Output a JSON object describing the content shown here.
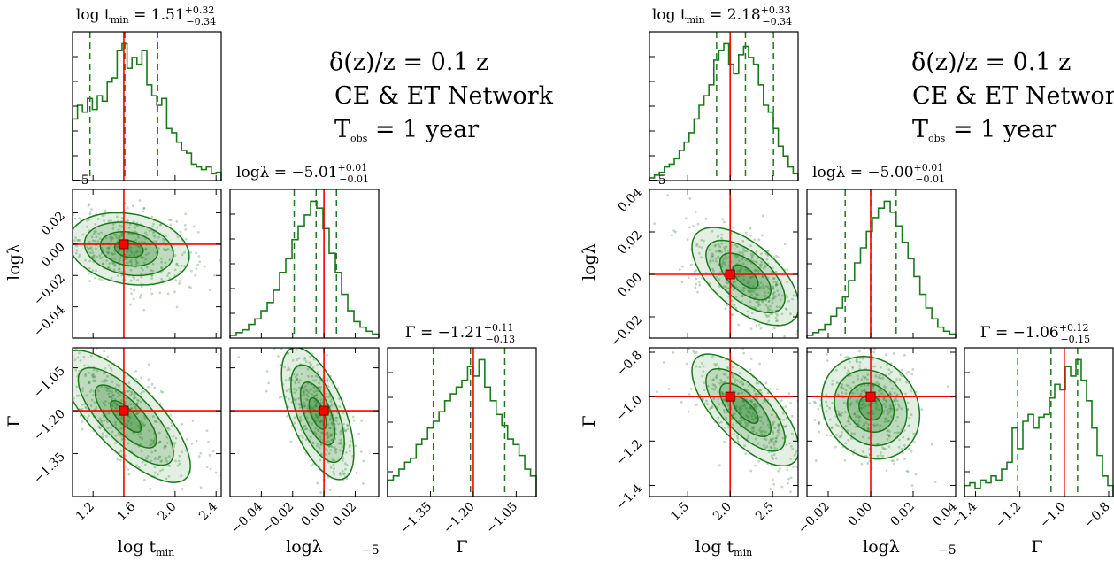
{
  "colors": {
    "posterior": "#1b7a1b",
    "truth": "#ff0000",
    "frame": "#000000"
  },
  "chart_data": [
    {
      "type": "corner",
      "annotation": [
        "δ(z)/z = 0.1 z",
        "CE & ET Network",
        "T_obs = 1 year"
      ],
      "annotation_text": {
        "line1": "δ(z)/z = 0.1 z",
        "line2": "CE & ET Network",
        "line3_main": "T",
        "line3_sub": "obs",
        "line3_rest": " = 1 year"
      },
      "parameters": [
        {
          "label": "log t_min",
          "label_main": "log t",
          "label_sub": "min",
          "title": "log t_min = 1.51 +0.32 −0.34",
          "title_main": "log t",
          "title_sub": "min",
          "title_value": " = 1.51",
          "title_plus": "+0.32",
          "title_minus": "−0.34",
          "range": [
            1.0,
            2.45
          ],
          "ticks": [
            1.2,
            1.6,
            2.0,
            2.4
          ],
          "tick_labels": [
            "1.2",
            "1.6",
            "2.0",
            "2.4"
          ],
          "truth": 1.5,
          "quantiles": [
            1.17,
            1.51,
            1.83
          ],
          "hist_y": [
            0.45,
            0.55,
            0.5,
            0.6,
            0.52,
            0.62,
            0.58,
            0.72,
            0.75,
            0.95,
            1.0,
            0.82,
            0.9,
            0.85,
            0.95,
            0.7,
            0.62,
            0.55,
            0.6,
            0.38,
            0.35,
            0.28,
            0.22,
            0.2,
            0.12,
            0.1,
            0.08,
            0.1,
            0.05,
            0.06
          ]
        },
        {
          "label": "logλ",
          "title": "logλ = −5.01 +0.01 −0.01",
          "title_main": "logλ = −5.01",
          "title_plus": "+0.01",
          "title_minus": "−0.01",
          "range": [
            -0.06,
            0.035
          ],
          "ticks": [
            -0.04,
            -0.02,
            0.0,
            0.02
          ],
          "tick_labels": [
            "−0.04",
            "−0.02",
            "0.00",
            "0.02"
          ],
          "offset_label": "−5",
          "truth": 0.0,
          "quantiles": [
            -0.019,
            -0.005,
            0.008
          ],
          "hist_y": [
            0.02,
            0.04,
            0.06,
            0.1,
            0.14,
            0.2,
            0.26,
            0.35,
            0.48,
            0.58,
            0.72,
            0.82,
            0.9,
            1.0,
            0.95,
            0.8,
            0.62,
            0.48,
            0.32,
            0.2,
            0.12,
            0.08,
            0.05,
            0.03
          ]
        },
        {
          "label": "Γ",
          "title": "Γ = −1.21 +0.11 −0.13",
          "title_main": "Γ = −1.21",
          "title_plus": "+0.11",
          "title_minus": "−0.13",
          "range": [
            -1.5,
            -0.98
          ],
          "ticks": [
            -1.35,
            -1.2,
            -1.05
          ],
          "tick_labels": [
            "−1.35",
            "−1.20",
            "−1.05"
          ],
          "truth": -1.2,
          "quantiles": [
            -1.34,
            -1.21,
            -1.09
          ],
          "hist_y": [
            0.12,
            0.15,
            0.2,
            0.25,
            0.28,
            0.38,
            0.42,
            0.5,
            0.55,
            0.62,
            0.7,
            0.75,
            0.8,
            0.85,
            0.95,
            0.88,
            1.0,
            0.8,
            0.7,
            0.6,
            0.52,
            0.42,
            0.38,
            0.3,
            0.2,
            0.15
          ]
        }
      ],
      "pairs": [
        {
          "x": 0,
          "y": 1,
          "mean": [
            1.55,
            -0.003
          ],
          "sd": [
            0.28,
            0.011
          ],
          "rho": -0.2
        },
        {
          "x": 0,
          "y": 2,
          "mean": [
            1.52,
            -1.22
          ],
          "sd": [
            0.3,
            0.11
          ],
          "rho": -0.75
        },
        {
          "x": 1,
          "y": 2,
          "mean": [
            -0.004,
            -1.21
          ],
          "sd": [
            0.011,
            0.11
          ],
          "rho": -0.6
        }
      ]
    },
    {
      "type": "corner",
      "annotation": [
        "δ(z)/z = 0.1 z",
        "CE & ET Network",
        "T_obs = 1 year"
      ],
      "annotation_text": {
        "line1": "δ(z)/z = 0.1 z",
        "line2": "CE & ET Network",
        "line3_main": "T",
        "line3_sub": "obs",
        "line3_rest": " = 1 year"
      },
      "parameters": [
        {
          "label": "log t_min",
          "label_main": "log t",
          "label_sub": "min",
          "title": "log t_min = 2.18 +0.33 −0.34",
          "title_main": "log t",
          "title_sub": "min",
          "title_value": " = 2.18",
          "title_plus": "+0.33",
          "title_minus": "−0.34",
          "range": [
            1.05,
            2.8
          ],
          "ticks": [
            1.5,
            2.0,
            2.5
          ],
          "tick_labels": [
            "1.5",
            "2.0",
            "2.5"
          ],
          "truth": 2.0,
          "quantiles": [
            1.84,
            2.18,
            2.51
          ],
          "hist_y": [
            0.02,
            0.04,
            0.06,
            0.1,
            0.12,
            0.16,
            0.22,
            0.28,
            0.35,
            0.45,
            0.55,
            0.62,
            0.7,
            0.88,
            0.95,
            1.0,
            0.85,
            0.78,
            0.92,
            0.98,
            0.9,
            0.85,
            0.7,
            0.55,
            0.5,
            0.38,
            0.25,
            0.18,
            0.1,
            0.05
          ]
        },
        {
          "label": "logλ",
          "title": "logλ = −5.00 +0.01 −0.01",
          "title_main": "logλ = −5.00",
          "title_plus": "+0.01",
          "title_minus": "−0.01",
          "range": [
            -0.03,
            0.04
          ],
          "ticks": [
            -0.02,
            0.0,
            0.02,
            0.04
          ],
          "tick_labels": [
            "−0.02",
            "0.00",
            "0.02",
            "0.04"
          ],
          "offset_label": "−5",
          "truth": 0.0,
          "quantiles": [
            -0.012,
            0.0,
            0.012
          ],
          "hist_y": [
            0.02,
            0.04,
            0.06,
            0.1,
            0.16,
            0.22,
            0.3,
            0.42,
            0.55,
            0.66,
            0.78,
            0.88,
            0.95,
            1.0,
            0.92,
            0.82,
            0.7,
            0.58,
            0.45,
            0.32,
            0.22,
            0.14,
            0.08,
            0.05,
            0.03
          ]
        },
        {
          "label": "Γ",
          "title": "Γ = −1.06 +0.12 −0.15",
          "title_main": "Γ = −1.06",
          "title_plus": "+0.12",
          "title_minus": "−0.15",
          "range": [
            -1.45,
            -0.78
          ],
          "ticks": [
            -1.4,
            -1.2,
            -1.0,
            -0.8
          ],
          "tick_labels": [
            "−1.4",
            "−1.2",
            "−1.0",
            "−0.8"
          ],
          "truth": -1.0,
          "quantiles": [
            -1.21,
            -1.06,
            -0.94
          ],
          "hist_y": [
            0.08,
            0.1,
            0.06,
            0.12,
            0.1,
            0.15,
            0.12,
            0.2,
            0.25,
            0.5,
            0.35,
            0.55,
            0.6,
            0.5,
            0.58,
            0.6,
            0.72,
            0.82,
            0.78,
            0.95,
            0.88,
            1.0,
            0.85,
            0.7,
            0.5,
            0.3,
            0.15,
            0.08
          ]
        }
      ],
      "pairs": [
        {
          "x": 0,
          "y": 1,
          "mean": [
            2.18,
            -0.001
          ],
          "sd": [
            0.3,
            0.011
          ],
          "rho": -0.6
        },
        {
          "x": 0,
          "y": 2,
          "mean": [
            2.18,
            -1.06
          ],
          "sd": [
            0.3,
            0.12
          ],
          "rho": -0.7
        },
        {
          "x": 1,
          "y": 2,
          "mean": [
            0.0,
            -1.05
          ],
          "sd": [
            0.011,
            0.11
          ],
          "rho": -0.15
        }
      ]
    }
  ]
}
